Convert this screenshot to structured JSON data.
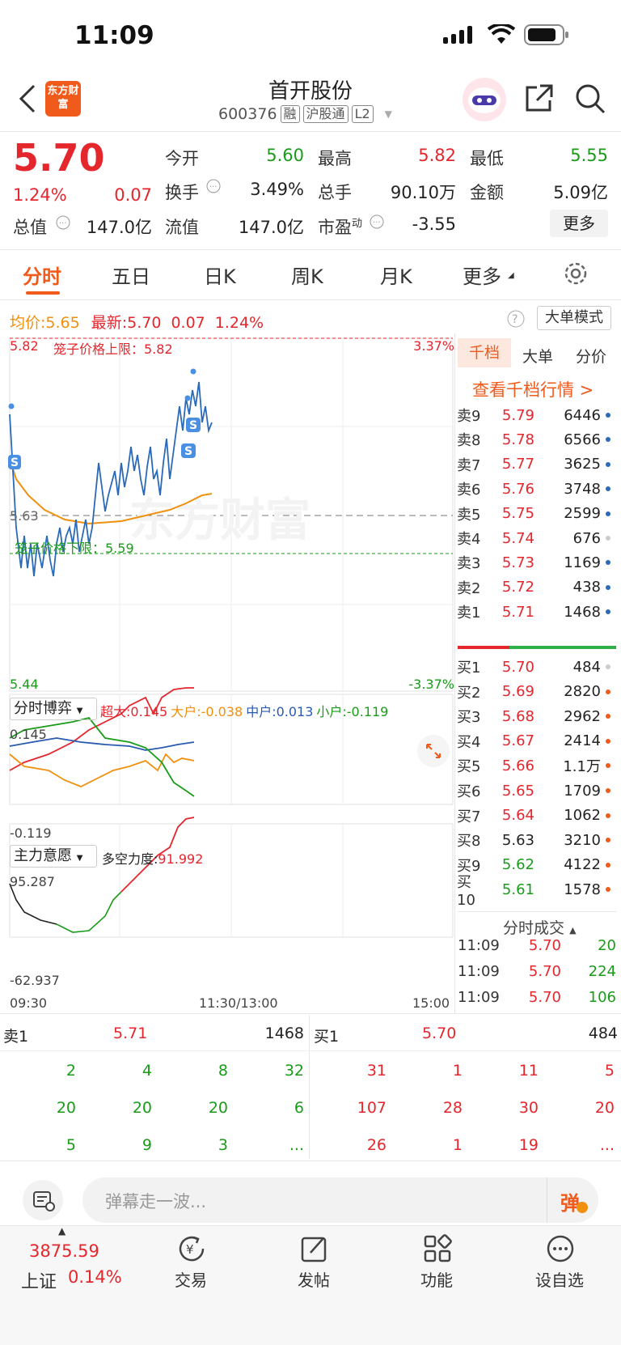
{
  "status": {
    "time": "11:09"
  },
  "header": {
    "logo_text": "东方财富",
    "title": "首开股份",
    "code": "600376",
    "tags": [
      "融",
      "沪股通",
      "L2"
    ]
  },
  "quote": {
    "price": "5.70",
    "change_pct": "1.24%",
    "change": "0.07",
    "open_label": "今开",
    "open": "5.60",
    "high_label": "最高",
    "high": "5.82",
    "low_label": "最低",
    "low": "5.55",
    "turnover_label": "换手",
    "turnover": "3.49%",
    "volume_label": "总手",
    "volume": "90.10万",
    "amount_label": "金额",
    "amount": "5.09亿",
    "mktcap_label": "总值",
    "mktcap": "147.0亿",
    "float_label": "流值",
    "float": "147.0亿",
    "pe_label": "市盈",
    "pe_sup": "动",
    "pe": "-3.55",
    "more_button": "更多"
  },
  "tabs": [
    "分时",
    "五日",
    "日K",
    "周K",
    "月K",
    "更多"
  ],
  "chart_info": {
    "avg_label": "均价:",
    "avg": "5.65",
    "latest_label": "最新:",
    "latest": "5.70",
    "latest_chg": "0.07",
    "latest_pct": "1.24%",
    "mode_button": "大单模式",
    "y_top": "5.82",
    "y_mid": "5.63",
    "y_bottom": "5.44",
    "pct_top": "3.37%",
    "pct_bottom": "-3.37%",
    "upper_limit": "笼子价格上限：5.82",
    "lower_limit": "笼子价格下限：5.59",
    "watermark": "东方财富",
    "time_start": "09:30",
    "time_mid": "11:30/13:00",
    "time_end": "15:00"
  },
  "game": {
    "selector": "分时博弈",
    "chaoda": "超大:0.145",
    "dahu": "大户:-0.038",
    "zhonghu": "中户:0.013",
    "xiaohu": "小户:-0.119",
    "top": "0.145",
    "bottom": "-0.119"
  },
  "willing": {
    "selector": "主力意愿",
    "force": "多空力度:",
    "force_val": "91.992",
    "top": "95.287",
    "bottom": "-62.937"
  },
  "orderbook": {
    "tabs": [
      "千档",
      "大单",
      "分价"
    ],
    "link": "查看千档行情 >",
    "asks": [
      {
        "n": "卖9",
        "p": "5.79",
        "v": "6446"
      },
      {
        "n": "卖8",
        "p": "5.78",
        "v": "6566"
      },
      {
        "n": "卖7",
        "p": "5.77",
        "v": "3625"
      },
      {
        "n": "卖6",
        "p": "5.76",
        "v": "3748"
      },
      {
        "n": "卖5",
        "p": "5.75",
        "v": "2599"
      },
      {
        "n": "卖4",
        "p": "5.74",
        "v": "676"
      },
      {
        "n": "卖3",
        "p": "5.73",
        "v": "1169"
      },
      {
        "n": "卖2",
        "p": "5.72",
        "v": "438"
      },
      {
        "n": "卖1",
        "p": "5.71",
        "v": "1468"
      }
    ],
    "bids": [
      {
        "n": "买1",
        "p": "5.70",
        "v": "484"
      },
      {
        "n": "买2",
        "p": "5.69",
        "v": "2820"
      },
      {
        "n": "买3",
        "p": "5.68",
        "v": "2962"
      },
      {
        "n": "买4",
        "p": "5.67",
        "v": "2414"
      },
      {
        "n": "买5",
        "p": "5.66",
        "v": "1.1万"
      },
      {
        "n": "买6",
        "p": "5.65",
        "v": "1709"
      },
      {
        "n": "买7",
        "p": "5.64",
        "v": "1062"
      },
      {
        "n": "买8",
        "p": "5.63",
        "v": "3210"
      },
      {
        "n": "买9",
        "p": "5.62",
        "v": "4122"
      },
      {
        "n": "买10",
        "p": "5.61",
        "v": "1578"
      }
    ],
    "trades_title": "分时成交",
    "trades": [
      {
        "t": "11:09",
        "p": "5.70",
        "v": "20"
      },
      {
        "t": "11:09",
        "p": "5.70",
        "v": "224"
      },
      {
        "t": "11:09",
        "p": "5.70",
        "v": "106"
      }
    ]
  },
  "queue": {
    "sell_label": "卖1",
    "sell_price": "5.71",
    "sell_vol": "1468",
    "buy_label": "买1",
    "buy_price": "5.70",
    "buy_vol": "484",
    "sell_rows": [
      [
        "2",
        "4",
        "8",
        "32"
      ],
      [
        "20",
        "20",
        "20",
        "6"
      ],
      [
        "5",
        "9",
        "3",
        "..."
      ]
    ],
    "buy_rows": [
      [
        "31",
        "1",
        "11",
        "5"
      ],
      [
        "107",
        "28",
        "30",
        "20"
      ],
      [
        "26",
        "1",
        "19",
        "..."
      ]
    ]
  },
  "comment": {
    "placeholder": "弹幕走一波...",
    "danmu_btn": "弹"
  },
  "bottom_nav": {
    "index_value": "3875.59",
    "index_name": "上证",
    "index_pct": "0.14%",
    "trade": "交易",
    "post": "发帖",
    "func": "功能",
    "watch": "设自选"
  },
  "colors": {
    "up": "#e4262d",
    "down": "#1a9b1a",
    "accent": "#f05a1a",
    "avg": "#f0900e",
    "price_line": "#2a6ab8"
  }
}
